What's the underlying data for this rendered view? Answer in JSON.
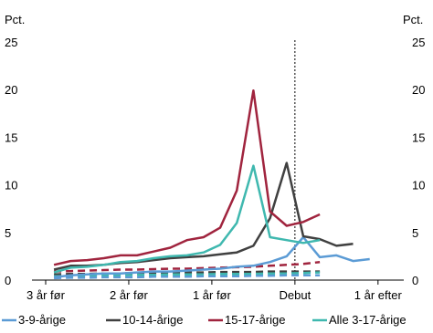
{
  "chart_data": {
    "type": "line",
    "ylabel_left": "Pct.",
    "ylabel_right": "Pct.",
    "ylim": [
      0,
      25
    ],
    "yticks": [
      0,
      5,
      10,
      15,
      20,
      25
    ],
    "xlim": [
      0,
      42
    ],
    "xticks": [
      {
        "x": 0,
        "label": "3 år før"
      },
      {
        "x": 10,
        "label": "2 år før"
      },
      {
        "x": 20,
        "label": "1 år før"
      },
      {
        "x": 30,
        "label": "Debut"
      },
      {
        "x": 40,
        "label": "1 år efter"
      }
    ],
    "debut_marker_x": 30,
    "x": [
      1,
      3,
      5,
      7,
      9,
      11,
      13,
      15,
      17,
      19,
      21,
      23,
      25,
      27,
      29,
      31,
      33,
      35,
      37,
      39,
      41
    ],
    "series": [
      {
        "name": "3-9-årige",
        "color": "#5b9bd5",
        "style": "solid",
        "values": [
          0.3,
          0.5,
          0.6,
          0.7,
          0.7,
          0.8,
          0.9,
          0.9,
          1.0,
          1.1,
          1.2,
          1.4,
          1.5,
          1.9,
          2.5,
          4.5,
          2.4,
          2.6,
          2.0,
          2.2,
          null
        ]
      },
      {
        "name": "10-14-årige",
        "color": "#404040",
        "style": "solid",
        "values": [
          1.1,
          1.5,
          1.5,
          1.6,
          1.8,
          1.9,
          2.1,
          2.3,
          2.4,
          2.5,
          2.7,
          2.9,
          3.6,
          6.5,
          12.3,
          4.6,
          4.3,
          3.6,
          3.8,
          null,
          null
        ]
      },
      {
        "name": "15-17-årige",
        "color": "#a0243e",
        "style": "solid",
        "values": [
          1.6,
          2.0,
          2.1,
          2.3,
          2.6,
          2.6,
          3.0,
          3.4,
          4.2,
          4.5,
          5.5,
          9.4,
          19.9,
          7.2,
          5.7,
          6.1,
          6.9,
          null,
          null,
          null,
          null
        ]
      },
      {
        "name": "Alle 3-17-årige",
        "color": "#3fb8af",
        "style": "solid",
        "values": [
          0.8,
          1.3,
          1.4,
          1.6,
          1.9,
          2.0,
          2.3,
          2.5,
          2.6,
          2.9,
          3.7,
          6.0,
          12.0,
          4.5,
          4.2,
          3.9,
          4.2,
          null,
          null,
          null,
          null
        ]
      }
    ],
    "baseline_series": [
      {
        "color": "#a0243e",
        "style": "dashed",
        "values": [
          0.9,
          0.95,
          1.0,
          1.05,
          1.1,
          1.1,
          1.15,
          1.2,
          1.2,
          1.25,
          1.3,
          1.35,
          1.4,
          1.5,
          1.6,
          1.7,
          1.9
        ]
      },
      {
        "color": "#404040",
        "style": "dashed",
        "values": [
          0.6,
          0.65,
          0.65,
          0.7,
          0.7,
          0.75,
          0.75,
          0.8,
          0.8,
          0.8,
          0.85,
          0.85,
          0.85,
          0.9,
          0.9,
          0.9,
          0.9
        ]
      },
      {
        "color": "#3fb8af",
        "style": "dashed",
        "values": [
          0.4,
          0.45,
          0.45,
          0.5,
          0.5,
          0.55,
          0.55,
          0.6,
          0.6,
          0.6,
          0.65,
          0.65,
          0.65,
          0.7,
          0.7,
          0.75,
          0.8
        ]
      },
      {
        "color": "#5b9bd5",
        "style": "dashed",
        "values": [
          0.2,
          0.25,
          0.25,
          0.3,
          0.3,
          0.3,
          0.35,
          0.35,
          0.35,
          0.4,
          0.4,
          0.4,
          0.45,
          0.45,
          0.5,
          0.5,
          0.5
        ]
      }
    ],
    "legend_position": "bottom"
  }
}
